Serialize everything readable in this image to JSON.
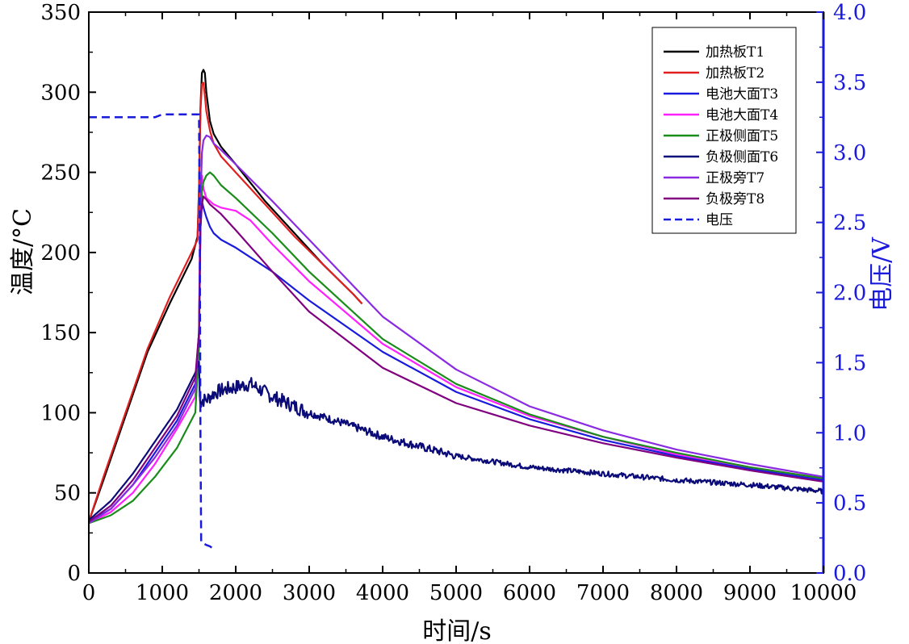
{
  "chart_data": {
    "type": "line",
    "xlabel": "时间/s",
    "ylabel": "温度/°C",
    "y2label": "电压/V",
    "xlim": [
      0,
      10000
    ],
    "ylim": [
      0,
      350
    ],
    "y2lim": [
      0.0,
      4.0
    ],
    "xticks": [
      0,
      1000,
      2000,
      3000,
      4000,
      5000,
      6000,
      7000,
      8000,
      9000,
      10000
    ],
    "yticks": [
      0,
      50,
      100,
      150,
      200,
      250,
      300,
      350
    ],
    "y2ticks": [
      "0.0",
      "0.5",
      "1.0",
      "1.5",
      "2.0",
      "2.5",
      "3.0",
      "3.5",
      "4.0"
    ],
    "grid": false,
    "legend_position": "top-right",
    "colors": {
      "axis": "#000000",
      "right_axis": "#1a1adc"
    },
    "series": [
      {
        "name": "加热板T1",
        "color": "#000000",
        "axis": "left",
        "style": "solid",
        "x": [
          0,
          200,
          500,
          800,
          1100,
          1400,
          1480,
          1500,
          1520,
          1540,
          1560,
          1580,
          1600,
          1650,
          1700,
          1800,
          2000,
          2400,
          2800,
          3200,
          3600,
          3720
        ],
        "y": [
          32,
          58,
          98,
          138,
          168,
          196,
          210,
          240,
          290,
          312,
          314,
          312,
          300,
          282,
          274,
          266,
          255,
          232,
          212,
          192,
          174,
          168
        ]
      },
      {
        "name": "加热板T2",
        "color": "#e02020",
        "axis": "left",
        "style": "solid",
        "x": [
          0,
          200,
          500,
          800,
          1100,
          1400,
          1480,
          1500,
          1520,
          1540,
          1560,
          1580,
          1600,
          1650,
          1700,
          1800,
          2000,
          2400,
          2800,
          3200,
          3600,
          3720
        ],
        "y": [
          32,
          60,
          100,
          140,
          172,
          200,
          208,
          240,
          288,
          305,
          306,
          298,
          288,
          276,
          268,
          260,
          250,
          230,
          210,
          192,
          174,
          168
        ]
      },
      {
        "name": "电池大面T3",
        "color": "#1a1adc",
        "axis": "left",
        "style": "solid",
        "x": [
          0,
          300,
          600,
          900,
          1200,
          1450,
          1500,
          1520,
          1540,
          1560,
          1600,
          1650,
          1700,
          1800,
          2000,
          2500,
          3000,
          4000,
          5000,
          6000,
          7000,
          8000,
          9000,
          10000
        ],
        "y": [
          32,
          40,
          55,
          75,
          95,
          118,
          150,
          215,
          232,
          228,
          222,
          216,
          212,
          208,
          203,
          188,
          170,
          138,
          113,
          96,
          83,
          73,
          65,
          58
        ]
      },
      {
        "name": "电池大面T4",
        "color": "#ff20ff",
        "axis": "left",
        "style": "solid",
        "x": [
          0,
          300,
          600,
          900,
          1200,
          1450,
          1500,
          1520,
          1540,
          1560,
          1600,
          1700,
          1800,
          2000,
          2200,
          2500,
          3000,
          4000,
          5000,
          6000,
          7000,
          8000,
          9000,
          10000
        ],
        "y": [
          31,
          38,
          50,
          68,
          90,
          110,
          150,
          240,
          248,
          240,
          234,
          230,
          228,
          226,
          220,
          205,
          182,
          143,
          116,
          98,
          85,
          74,
          66,
          59
        ]
      },
      {
        "name": "正极侧面T5",
        "color": "#1a8c1a",
        "axis": "left",
        "style": "solid",
        "x": [
          0,
          300,
          600,
          900,
          1200,
          1450,
          1500,
          1520,
          1540,
          1560,
          1600,
          1650,
          1700,
          1800,
          2000,
          2500,
          3000,
          4000,
          5000,
          6000,
          7000,
          8000,
          9000,
          10000
        ],
        "y": [
          31,
          36,
          45,
          60,
          78,
          100,
          140,
          215,
          238,
          244,
          248,
          250,
          248,
          242,
          234,
          212,
          188,
          146,
          118,
          99,
          85,
          75,
          66,
          59
        ]
      },
      {
        "name": "负极侧面T6",
        "color": "#0a0a78",
        "axis": "left",
        "style": "solid",
        "noisy": true,
        "x": [
          0,
          300,
          600,
          900,
          1200,
          1450,
          1500,
          1510,
          1530,
          1550,
          1600,
          1700,
          1800,
          2000,
          2200,
          2500,
          3000,
          3500,
          4000,
          5000,
          6000,
          7000,
          8000,
          9000,
          10000
        ],
        "y": [
          33,
          45,
          62,
          82,
          102,
          125,
          132,
          110,
          106,
          108,
          108,
          112,
          114,
          116,
          118,
          110,
          100,
          93,
          85,
          73,
          66,
          62,
          58,
          55,
          51
        ]
      },
      {
        "name": "正极旁T7",
        "color": "#8a2be2",
        "axis": "left",
        "style": "solid",
        "x": [
          0,
          300,
          600,
          900,
          1200,
          1450,
          1500,
          1520,
          1540,
          1560,
          1600,
          1650,
          1700,
          1800,
          2000,
          2500,
          3000,
          4000,
          5000,
          6000,
          7000,
          8000,
          9000,
          10000
        ],
        "y": [
          31,
          40,
          55,
          72,
          92,
          115,
          150,
          230,
          262,
          270,
          273,
          272,
          268,
          264,
          255,
          232,
          208,
          160,
          127,
          104,
          89,
          77,
          68,
          60
        ]
      },
      {
        "name": "负极旁T8",
        "color": "#800080",
        "axis": "left",
        "style": "solid",
        "x": [
          0,
          300,
          600,
          900,
          1200,
          1450,
          1500,
          1520,
          1540,
          1560,
          1600,
          1650,
          1700,
          1800,
          2000,
          2500,
          3000,
          4000,
          5000,
          6000,
          7000,
          8000,
          9000,
          10000
        ],
        "y": [
          32,
          42,
          58,
          78,
          98,
          122,
          150,
          215,
          230,
          235,
          233,
          230,
          228,
          224,
          214,
          188,
          163,
          128,
          106,
          92,
          81,
          72,
          64,
          57
        ]
      },
      {
        "name": "电压",
        "color": "#1a1adc",
        "axis": "right",
        "style": "dashed",
        "x": [
          0,
          900,
          1000,
          1500,
          1510,
          1520,
          1530,
          1600,
          1650,
          1700
        ],
        "y": [
          3.25,
          3.25,
          3.27,
          3.27,
          2.5,
          1.0,
          0.22,
          0.2,
          0.19,
          0.17
        ]
      }
    ]
  }
}
